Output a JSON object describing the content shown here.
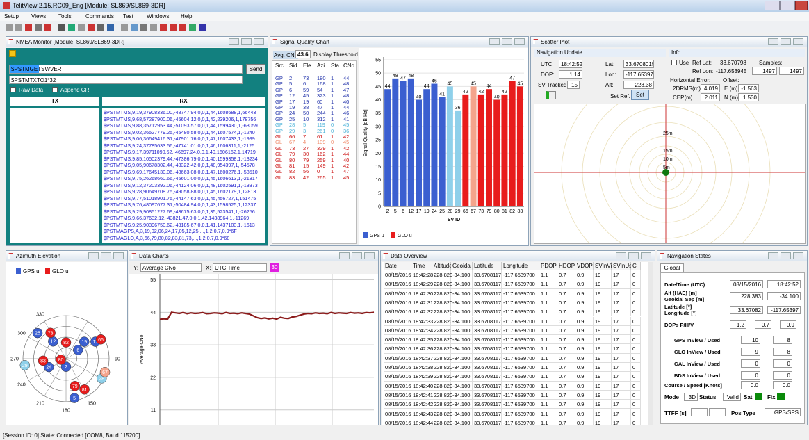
{
  "window": {
    "title": "TelitView 2.15.RC09_Eng [Module: SL869/SL869-3DR]",
    "menu": [
      "Setup",
      "Views",
      "Tools",
      "Commands",
      "Test",
      "Windows",
      "Help"
    ]
  },
  "nmea": {
    "title": "NMEA Monitor [Module: SL869/SL869-3DR]",
    "command": "$PSTMGETSWVER",
    "history": "$PSTMTXTO1*32",
    "send": "Send",
    "raw": "Raw Data",
    "append": "Append CR",
    "tx": "TX",
    "rx": "RX",
    "rx_lines": [
      "$PSTMTMS,9,19,37908336.00,-48747.94,0,0,1,44,1608688,1,66443",
      "$PSTMTMS,9,68,57287900.06,-45604.12,0,0,1,42,239206,1,178756",
      "$PSTMTMS,9,88,35712953.44,-51093.57,0,0,1,44,1599430,1,-63059",
      "$PSTMTMS,9,02,36527779.25,-45480.58,0,0,1,44,1607574,1,-1240",
      "$PSTMTMS,9,06,36649416.31,-47901.76,0,0,1,47,1607433,1,-1999",
      "$PSTMTMS,9,24,37785633.56,-47741.01,0,0,1,46,1606311,1,-2125",
      "$PSTMTMS,9,17,39711090.62,-46697.24,0,0,1,40,1606162,1,14719",
      "$PSTMTMS,9,85,10502379.44,-47386.79,0,0,1,40,1599358,1,-13234",
      "$PSTMTMS,9,05,90678302.44,-43322.42,0,0,1,48,954397,1,-54578",
      "$PSTMTMS,9,69,17645130.06,-48663.08,0,0,1,47,1600276,1,-58510",
      "$PSTMTMS,9,75,26268660.66,-45601.00,0,0,1,45,1606613,1,-21817",
      "$PSTMTMS,9,12,37203392.06,-44124.06,0,0,1,48,1602591,1,-13373",
      "$PSTMTMS,9,28,90649708.75,-49058.88,0,0,1,45,1602179,1,12813",
      "$PSTMTMS,9,77,51018901.75,-44147.63,0,0,1,45,456727,1,151475",
      "$PSTMTMS,9,76,48097677.31,-50484.94,0,0,1,43,1598525,1,12337",
      "$PSTMTMS,9,29,90851227.69,-43675.63,0,0,1,35,523541,1,-26256",
      "$PSTMTMS,9,66,37632.12,-43821.47,0,0,1,42,1438964,1,-11269",
      "$PSTMTMS,9,25,90396750.62,-43185.67,0,0,1,41,1437103,1,-1613",
      "$PSTMAGPS,A,3,19,02,06,24,17,05,12,25,...,1.2,0.7,0.9*6F",
      "$PSTMAGLO,A,3,66,79,80,82,83,81,73,...,1.2,0.7,0.9*68"
    ]
  },
  "signal": {
    "title": "Signal Quality Chart",
    "avg_label": "Avg. CNo",
    "avg": "43.6",
    "threshold": "Display Threshold",
    "columns": [
      "Src",
      "Sid",
      "Ele",
      "Azi",
      "Sta",
      "CNo"
    ],
    "rows": [
      [
        "GP",
        2,
        73,
        180,
        1,
        44
      ],
      [
        "GP",
        5,
        6,
        168,
        1,
        48
      ],
      [
        "GP",
        6,
        59,
        54,
        1,
        47
      ],
      [
        "GP",
        12,
        45,
        323,
        1,
        48
      ],
      [
        "GP",
        17,
        19,
        60,
        1,
        40
      ],
      [
        "GP",
        19,
        38,
        47,
        1,
        44
      ],
      [
        "GP",
        24,
        50,
        244,
        1,
        46
      ],
      [
        "GP",
        25,
        10,
        312,
        1,
        41
      ],
      [
        "GP",
        28,
        5,
        119,
        0,
        45
      ],
      [
        "GP",
        29,
        3,
        261,
        0,
        36
      ],
      [
        "GL",
        66,
        7,
        61,
        1,
        42
      ],
      [
        "GL",
        67,
        4,
        109,
        0,
        45
      ],
      [
        "GL",
        73,
        27,
        329,
        1,
        42
      ],
      [
        "GL",
        79,
        30,
        162,
        1,
        44
      ],
      [
        "GL",
        80,
        79,
        259,
        1,
        40
      ],
      [
        "GL",
        81,
        15,
        149,
        1,
        42
      ],
      [
        "GL",
        82,
        56,
        0,
        1,
        47
      ],
      [
        "GL",
        83,
        42,
        265,
        1,
        45
      ]
    ]
  },
  "chart_data": [
    {
      "type": "bar",
      "xlabel": "SV ID",
      "ylabel": "Signal Quality [dB Hz]",
      "categories": [
        "2",
        "5",
        "6",
        "12",
        "17",
        "19",
        "24",
        "25",
        "28",
        "29",
        "66",
        "67",
        "73",
        "79",
        "80",
        "81",
        "82",
        "83"
      ],
      "values": [
        44,
        48,
        47,
        48,
        40,
        44,
        46,
        41,
        45,
        36,
        42,
        45,
        42,
        44,
        40,
        42,
        47,
        45
      ],
      "colors": [
        "#3b5fd0",
        "#3b5fd0",
        "#3b5fd0",
        "#3b5fd0",
        "#3b5fd0",
        "#3b5fd0",
        "#3b5fd0",
        "#3b5fd0",
        "#8fd0ea",
        "#8fd0ea",
        "#e81c1c",
        "#f4a48c",
        "#e81c1c",
        "#e81c1c",
        "#e81c1c",
        "#e81c1c",
        "#e81c1c",
        "#e81c1c"
      ],
      "ylim": [
        0,
        55
      ],
      "yticks": [
        0,
        5,
        10,
        15,
        20,
        25,
        30,
        35,
        40,
        45,
        50,
        55
      ],
      "grid": true,
      "legend": [
        {
          "name": "GPS u",
          "color": "#3b5fd0"
        },
        {
          "name": "GLO u",
          "color": "#e81c1c"
        }
      ]
    },
    {
      "type": "line",
      "ylabel": "Average CNo",
      "color": "#8b1a1a",
      "values": [
        41.6,
        41.8,
        41.7,
        44.0,
        43.8,
        43.6,
        43.9,
        43.5,
        43.8,
        43.6,
        43.7,
        43.9,
        43.5,
        43.6,
        43.8,
        43.7,
        43.5,
        43.9,
        43.6,
        43.7,
        43.5,
        43.8,
        43.6,
        43.4,
        42.8,
        42.2,
        41.9,
        42.1,
        41.8,
        42.0,
        41.7,
        42.3,
        42.0,
        41.9,
        42.4,
        42.6,
        43.0,
        43.4,
        43.6,
        43.5,
        43.8,
        43.6,
        43.7,
        43.5,
        43.9,
        43.6,
        43.8,
        43.7,
        43.6,
        43.9,
        43.7,
        43.8,
        43.6,
        43.9,
        43.8,
        44.0
      ],
      "ylim": [
        6,
        57
      ],
      "yticks": [
        11,
        22,
        33,
        44,
        55
      ],
      "grid": true
    }
  ],
  "charts": {
    "title": "Data Charts",
    "y_axis": "Y:",
    "y_select": "Average CNo",
    "x_axis": "X:",
    "x_select": "UTC Time",
    "window": "30"
  },
  "scatter": {
    "title": "Scatter Plot",
    "nav_update": "Navigation Update",
    "utc_label": "UTC:",
    "utc": "18:42:52",
    "dop_label": "DOP:",
    "dop": "1.14",
    "sv_label": "SV Tracked:",
    "sv": "15",
    "lat_label": "Lat:",
    "lat": "33.6708015",
    "lon_label": "Lon:",
    "lon": "-117.653971",
    "alt_label": "Alt:",
    "alt": "228.38",
    "set_ref": "Set Ref.",
    "set": "Set",
    "info": "Info",
    "use": "Use",
    "ref_lat_label": "Ref Lat:",
    "ref_lat": "33.670798",
    "ref_lon_label": "Ref Lon:",
    "ref_lon": "-117.653945",
    "samples_label": "Samples:",
    "samples": [
      "1497",
      "1497"
    ],
    "herr": "Horizontal Error:",
    "offset": "Offset:",
    "drms_label": "2DRMS(m)",
    "drms": "4.019",
    "e_label": "E (m)",
    "e": "-1.563",
    "cep_label": "CEP(m)",
    "cep": "2.011",
    "n_label": "N (m)",
    "n": "1.530",
    "rings": [
      "25m",
      "15m",
      "10m",
      "5m"
    ]
  },
  "azimuth": {
    "title": "Azimuth Elevation",
    "legend": [
      "GPS u",
      "GLO u"
    ],
    "az_ticks": [
      330,
      300,
      270,
      240,
      210,
      180,
      150,
      90
    ]
  },
  "overview": {
    "title": "Data Overview",
    "columns": [
      "Date",
      "Time",
      "Altitude",
      "Geoidal Sep",
      "Latitude",
      "Longitude",
      "PDOP",
      "HDOP",
      "VDOP",
      "SVInView",
      "SVInUse",
      "C"
    ],
    "rows": [
      [
        "08/15/2016",
        "18:42:28",
        "228.820",
        "-34.100",
        "33.6708117",
        "-117.6539700",
        "1.1",
        "0.7",
        "0.9",
        "19",
        "17",
        "0"
      ],
      [
        "08/15/2016",
        "18:42:29",
        "228.820",
        "-34.100",
        "33.6708117",
        "-117.6539700",
        "1.1",
        "0.7",
        "0.9",
        "19",
        "17",
        "0"
      ],
      [
        "08/15/2016",
        "18:42:30",
        "228.820",
        "-34.100",
        "33.6708117",
        "-117.6539700",
        "1.1",
        "0.7",
        "0.9",
        "19",
        "17",
        "0"
      ],
      [
        "08/15/2016",
        "18:42:31",
        "228.820",
        "-34.100",
        "33.6708117",
        "-117.6539700",
        "1.1",
        "0.7",
        "0.9",
        "19",
        "17",
        "0"
      ],
      [
        "08/15/2016",
        "18:42:32",
        "228.820",
        "-34.100",
        "33.6708117",
        "-117.6539700",
        "1.1",
        "0.7",
        "0.9",
        "19",
        "17",
        "0"
      ],
      [
        "08/15/2016",
        "18:42:33",
        "228.820",
        "-34.100",
        "33.6708117",
        "-117.6539700",
        "1.1",
        "0.7",
        "0.9",
        "19",
        "17",
        "0"
      ],
      [
        "08/15/2016",
        "18:42:34",
        "228.820",
        "-34.100",
        "33.6708117",
        "-117.6539700",
        "1.1",
        "0.7",
        "0.9",
        "19",
        "17",
        "0"
      ],
      [
        "08/15/2016",
        "18:42:35",
        "228.820",
        "-34.100",
        "33.6708117",
        "-117.6539700",
        "1.1",
        "0.7",
        "0.9",
        "19",
        "17",
        "0"
      ],
      [
        "08/15/2016",
        "18:42:36",
        "228.820",
        "-34.100",
        "33.6708117",
        "-117.6539700",
        "1.1",
        "0.7",
        "0.9",
        "19",
        "17",
        "0"
      ],
      [
        "08/15/2016",
        "18:42:37",
        "228.820",
        "-34.100",
        "33.6708117",
        "-117.6539700",
        "1.1",
        "0.7",
        "0.9",
        "19",
        "17",
        "0"
      ],
      [
        "08/15/2016",
        "18:42:38",
        "228.820",
        "-34.100",
        "33.6708117",
        "-117.6539700",
        "1.1",
        "0.7",
        "0.9",
        "19",
        "17",
        "0"
      ],
      [
        "08/15/2016",
        "18:42:39",
        "228.820",
        "-34.100",
        "33.6708117",
        "-117.6539700",
        "1.1",
        "0.7",
        "0.9",
        "19",
        "17",
        "0"
      ],
      [
        "08/15/2016",
        "18:42:40",
        "228.820",
        "-34.100",
        "33.6708117",
        "-117.6539700",
        "1.1",
        "0.7",
        "0.9",
        "19",
        "17",
        "0"
      ],
      [
        "08/15/2016",
        "18:42:41",
        "228.820",
        "-34.100",
        "33.6708117",
        "-117.6539700",
        "1.1",
        "0.7",
        "0.9",
        "19",
        "17",
        "0"
      ],
      [
        "08/15/2016",
        "18:42:42",
        "228.820",
        "-34.100",
        "33.6708117",
        "-117.6539700",
        "1.1",
        "0.7",
        "0.9",
        "19",
        "17",
        "0"
      ],
      [
        "08/15/2016",
        "18:42:43",
        "228.820",
        "-34.100",
        "33.6708117",
        "-117.6539700",
        "1.1",
        "0.7",
        "0.9",
        "19",
        "17",
        "0"
      ],
      [
        "08/15/2016",
        "18:42:44",
        "228.820",
        "-34.100",
        "33.6708117",
        "-117.6539700",
        "1.1",
        "0.7",
        "0.9",
        "19",
        "17",
        "0"
      ]
    ]
  },
  "nav": {
    "title": "Navigation States",
    "tab": "Global",
    "fields": [
      {
        "labels": [
          "Date/Time (UTC)"
        ],
        "values": [
          "08/15/2016",
          "18:42:52"
        ]
      },
      {
        "labels": [
          "Alt (HAE) [m]",
          "Geoidal Sep [m]"
        ],
        "values": [
          "228.383",
          "-34.100"
        ]
      },
      {
        "labels": [
          "Latitude [°]",
          "Longitude [°]"
        ],
        "values": [
          "33.67082",
          "-117.65397"
        ]
      },
      {
        "labels": [
          "DOPs P/H/V"
        ],
        "values": [
          "1.2",
          "0.7",
          "0.9"
        ]
      },
      {
        "labels": [
          "GPS InView / Used"
        ],
        "values": [
          "10",
          "8"
        ]
      },
      {
        "labels": [
          "GLO InView / Used"
        ],
        "values": [
          "9",
          "8"
        ]
      },
      {
        "labels": [
          "GAL InView / Used"
        ],
        "values": [
          "0",
          "0"
        ]
      },
      {
        "labels": [
          "BDS InView / Used"
        ],
        "values": [
          "0",
          "0"
        ]
      },
      {
        "labels": [
          "Course / Speed [Knots]"
        ],
        "values": [
          "0.0",
          "0.0"
        ]
      }
    ],
    "mode_label": "Mode",
    "mode": "3D",
    "status_label": "Status",
    "status": "Valid",
    "sat": "Sat",
    "fix": "Fix",
    "ttff": "TTFF [s]",
    "pos_type_label": "Pos Type",
    "pos_type": "GPS/SPS"
  },
  "status_bar": "[Session ID: 0] State: Connected [COM8, Baud 115200]"
}
